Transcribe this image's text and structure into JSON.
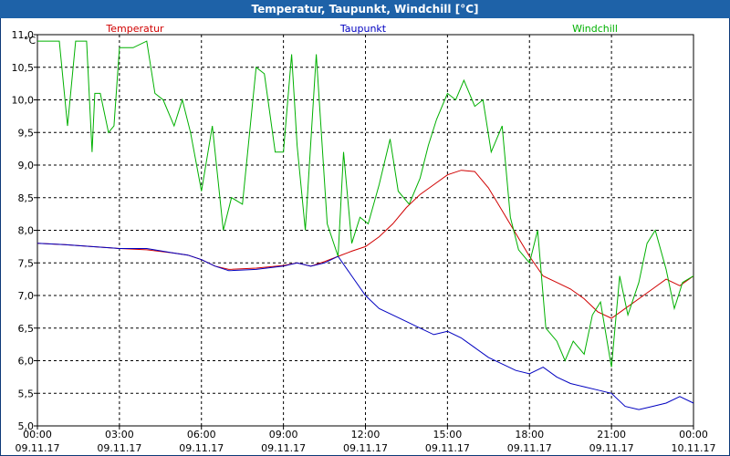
{
  "chart_data": {
    "type": "line",
    "title": "Temperatur, Taupunkt, Windchill [°C]",
    "ylabel": "°C",
    "ylim": [
      5.0,
      11.0
    ],
    "y_ticks": [
      "11,0",
      "10,5",
      "10,0",
      "9,5",
      "9,0",
      "8,5",
      "8,0",
      "7,5",
      "7,0",
      "6,5",
      "6,0",
      "5,5",
      "5,0"
    ],
    "x_range_hours": [
      0,
      24
    ],
    "x_ticks": [
      {
        "time": "00:00",
        "date": "09.11.17"
      },
      {
        "time": "03:00",
        "date": "09.11.17"
      },
      {
        "time": "06:00",
        "date": "09.11.17"
      },
      {
        "time": "09:00",
        "date": "09.11.17"
      },
      {
        "time": "12:00",
        "date": "09.11.17"
      },
      {
        "time": "15:00",
        "date": "09.11.17"
      },
      {
        "time": "18:00",
        "date": "09.11.17"
      },
      {
        "time": "21:00",
        "date": "09.11.17"
      },
      {
        "time": "00:00",
        "date": "10.11.17"
      }
    ],
    "grid": true,
    "series": [
      {
        "name": "Temperatur",
        "color": "#d00000",
        "x": [
          0,
          1,
          2,
          3,
          4,
          5,
          5.5,
          6,
          6.5,
          7,
          8,
          9,
          9.5,
          10,
          10.5,
          11,
          11.5,
          12,
          12.5,
          13,
          13.5,
          14,
          14.5,
          15,
          15.5,
          16,
          16.5,
          17,
          17.5,
          18,
          18.5,
          19,
          19.5,
          20,
          20.5,
          21,
          21.5,
          22,
          22.5,
          23,
          23.5,
          24
        ],
        "y": [
          7.8,
          7.78,
          7.75,
          7.72,
          7.7,
          7.65,
          7.62,
          7.55,
          7.45,
          7.4,
          7.42,
          7.46,
          7.5,
          7.45,
          7.52,
          7.6,
          7.68,
          7.75,
          7.9,
          8.1,
          8.35,
          8.55,
          8.7,
          8.85,
          8.92,
          8.9,
          8.65,
          8.3,
          7.95,
          7.6,
          7.3,
          7.2,
          7.1,
          6.95,
          6.75,
          6.65,
          6.8,
          6.95,
          7.1,
          7.25,
          7.15,
          7.3
        ]
      },
      {
        "name": "Taupunkt",
        "color": "#0000c0",
        "x": [
          0,
          1,
          2,
          3,
          4,
          5,
          5.5,
          6,
          6.5,
          7,
          8,
          9,
          9.5,
          10,
          10.5,
          11,
          11.5,
          12,
          12.5,
          13,
          13.5,
          14,
          14.5,
          15,
          15.5,
          16,
          16.5,
          17,
          17.5,
          18,
          18.5,
          19,
          19.5,
          20,
          20.5,
          21,
          21.5,
          22,
          22.5,
          23,
          23.5,
          24
        ],
        "y": [
          7.8,
          7.78,
          7.75,
          7.72,
          7.72,
          7.65,
          7.62,
          7.55,
          7.45,
          7.38,
          7.4,
          7.45,
          7.5,
          7.45,
          7.5,
          7.6,
          7.3,
          7.0,
          6.8,
          6.7,
          6.6,
          6.5,
          6.4,
          6.45,
          6.35,
          6.2,
          6.05,
          5.95,
          5.85,
          5.8,
          5.9,
          5.75,
          5.65,
          5.6,
          5.55,
          5.5,
          5.3,
          5.25,
          5.3,
          5.35,
          5.45,
          5.35
        ]
      },
      {
        "name": "Windchill",
        "color": "#00b000",
        "x": [
          0,
          0.8,
          1.1,
          1.4,
          1.8,
          2,
          2.1,
          2.3,
          2.6,
          2.8,
          3,
          3.5,
          4,
          4.3,
          4.6,
          5,
          5.3,
          5.6,
          6,
          6.4,
          6.8,
          7.1,
          7.5,
          8,
          8.3,
          8.7,
          9,
          9.3,
          9.5,
          9.8,
          10.2,
          10.6,
          11,
          11.2,
          11.5,
          11.8,
          12.1,
          12.5,
          12.9,
          13.2,
          13.6,
          14,
          14.3,
          14.6,
          15,
          15.3,
          15.6,
          16,
          16.3,
          16.6,
          17,
          17.3,
          17.6,
          18,
          18.3,
          18.6,
          19,
          19.3,
          19.6,
          20,
          20.3,
          20.6,
          21,
          21.3,
          21.6,
          22,
          22.3,
          22.6,
          23,
          23.3,
          23.6,
          24
        ],
        "y": [
          10.9,
          10.9,
          9.6,
          10.9,
          10.9,
          9.2,
          10.1,
          10.1,
          9.5,
          9.6,
          10.8,
          10.8,
          10.9,
          10.1,
          10.0,
          9.6,
          10.0,
          9.5,
          8.6,
          9.6,
          8.0,
          8.5,
          8.4,
          10.5,
          10.4,
          9.2,
          9.2,
          10.7,
          9.3,
          8.0,
          10.7,
          8.1,
          7.6,
          9.2,
          7.8,
          8.2,
          8.1,
          8.7,
          9.4,
          8.6,
          8.4,
          8.8,
          9.3,
          9.7,
          10.1,
          10.0,
          10.3,
          9.9,
          10.0,
          9.2,
          9.6,
          8.2,
          7.7,
          7.5,
          8.0,
          6.5,
          6.3,
          6.0,
          6.3,
          6.1,
          6.7,
          6.9,
          5.9,
          7.3,
          6.7,
          7.2,
          7.8,
          8.0,
          7.4,
          6.8,
          7.2,
          7.3
        ]
      }
    ]
  }
}
